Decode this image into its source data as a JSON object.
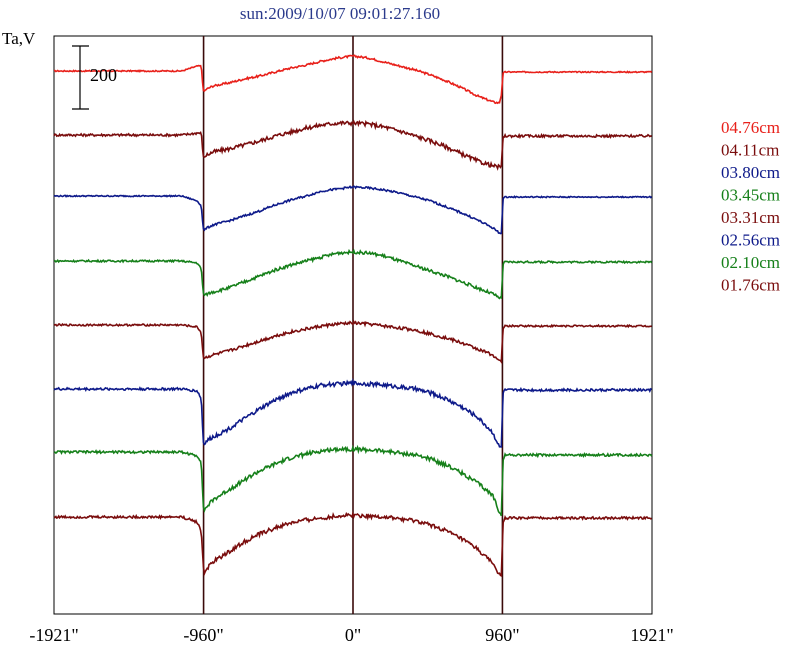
{
  "chart_data": {
    "type": "line",
    "title": "sun:2009/10/07 09:01:27.160",
    "ylabel": "Ta,V",
    "scale_bar_label": "200",
    "scale_bar_value": 200,
    "x_ticks": [
      {
        "value": -1921,
        "label": "-1921\""
      },
      {
        "value": -960,
        "label": "-960\""
      },
      {
        "value": 0,
        "label": "0\""
      },
      {
        "value": 960,
        "label": "960\""
      },
      {
        "value": 1921,
        "label": "1921\""
      }
    ],
    "xlim": [
      -1921,
      1921
    ],
    "vertical_lines": [
      -960,
      0,
      960
    ],
    "grid": false,
    "legend_position": "right",
    "series_shape_x": [
      -1921,
      -1500,
      -1100,
      -1000,
      -975,
      -962,
      -955,
      -940,
      -900,
      -800,
      -700,
      -600,
      -500,
      -400,
      -300,
      -200,
      -100,
      0,
      100,
      200,
      300,
      400,
      500,
      600,
      700,
      800,
      900,
      940,
      955,
      962,
      975,
      1000,
      1100,
      1500,
      1921
    ],
    "series": [
      {
        "name": "04.76cm",
        "color": "#e8201a",
        "offset": 0,
        "noise": 2,
        "values": [
          0,
          0,
          0,
          5,
          5,
          -20,
          -20,
          -18,
          -15,
          -12,
          -8,
          -5,
          -1,
          3,
          6,
          10,
          13,
          15,
          13,
          9,
          5,
          1,
          -4,
          -10,
          -17,
          -25,
          -31,
          -32,
          -23,
          -3,
          -1,
          -1,
          -1,
          -1,
          -1
        ]
      },
      {
        "name": "04.11cm",
        "color": "#7a0d0d",
        "offset": 64,
        "noise": 4,
        "values": [
          0,
          0,
          0,
          2,
          2,
          -22,
          -22,
          -20,
          -17,
          -14,
          -10,
          -6,
          -1,
          3,
          7,
          10,
          12,
          12,
          11,
          8,
          4,
          -1,
          -6,
          -12,
          -19,
          -26,
          -31,
          -32,
          -31,
          -3,
          -1,
          -1,
          -1,
          -1,
          -1
        ]
      },
      {
        "name": "03.80cm",
        "color": "#0e1a8a",
        "offset": 125,
        "noise": 2,
        "values": [
          0,
          0,
          0,
          -5,
          -10,
          -33,
          -34,
          -32,
          -29,
          -25,
          -20,
          -15,
          -9,
          -4,
          0,
          5,
          7,
          9,
          8,
          6,
          3,
          -1,
          -5,
          -11,
          -17,
          -24,
          -32,
          -37,
          -37,
          -3,
          -1,
          -1,
          -1,
          -1,
          -1
        ]
      },
      {
        "name": "03.45cm",
        "color": "#16801a",
        "offset": 190,
        "noise": 3,
        "values": [
          0,
          0,
          0,
          -2,
          -8,
          -32,
          -34,
          -33,
          -31,
          -27,
          -21,
          -15,
          -9,
          -4,
          0,
          4,
          8,
          9,
          8,
          5,
          0,
          -5,
          -10,
          -15,
          -21,
          -27,
          -33,
          -37,
          -37,
          -4,
          -1,
          -1,
          -1,
          -1,
          -1
        ]
      },
      {
        "name": "03.31cm",
        "color": "#7a0d0d",
        "offset": 254,
        "noise": 3,
        "values": [
          0,
          0,
          0,
          -2,
          -8,
          -32,
          -33,
          -32,
          -30,
          -26,
          -21,
          -16,
          -11,
          -7,
          -4,
          -1,
          1,
          2,
          1,
          -1,
          -3,
          -5,
          -9,
          -13,
          -18,
          -24,
          -30,
          -36,
          -36,
          -4,
          -1,
          -1,
          -1,
          -1,
          -1
        ]
      },
      {
        "name": "02.56cm",
        "color": "#0e1a8a",
        "offset": 318,
        "noise": 4,
        "values": [
          0,
          0,
          0,
          -2,
          -10,
          -53,
          -55,
          -52,
          -48,
          -40,
          -30,
          -20,
          -11,
          -4,
          0,
          4,
          5,
          6,
          5,
          4,
          2,
          0,
          -4,
          -10,
          -18,
          -28,
          -44,
          -58,
          -58,
          -4,
          -1,
          -1,
          -1,
          -1,
          -1
        ]
      },
      {
        "name": "02.10cm",
        "color": "#16801a",
        "offset": 381,
        "noise": 4,
        "values": [
          0,
          0,
          0,
          -4,
          -10,
          -54,
          -58,
          -55,
          -48,
          -38,
          -28,
          -19,
          -12,
          -6,
          -2,
          1,
          3,
          3,
          2,
          1,
          -1,
          -3,
          -7,
          -13,
          -21,
          -31,
          -44,
          -60,
          -63,
          -8,
          -3,
          -3,
          -3,
          -3,
          -3
        ]
      },
      {
        "name": "01.76cm",
        "color": "#7a0d0d",
        "offset": 446,
        "noise": 4,
        "values": [
          0,
          0,
          0,
          -5,
          -15,
          -48,
          -56,
          -52,
          -45,
          -35,
          -25,
          -17,
          -11,
          -6,
          -3,
          -1,
          1,
          2,
          1,
          0,
          -2,
          -4,
          -8,
          -14,
          -22,
          -32,
          -47,
          -57,
          -59,
          -8,
          -1,
          -1,
          -1,
          -1,
          -1
        ]
      }
    ]
  }
}
